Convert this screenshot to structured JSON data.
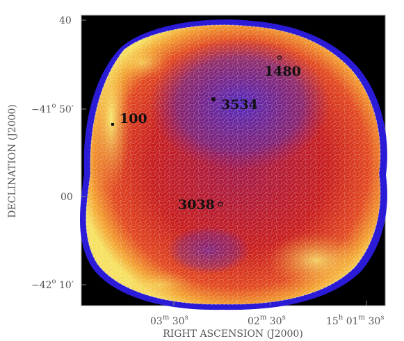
{
  "figure": {
    "y_axis_label": "DECLINATION (J2000)",
    "x_axis_label": "RIGHT ASCENSION (J2000)",
    "y_ticks": [
      {
        "deg": "",
        "min": "40",
        "prefix": ""
      },
      {
        "deg": "o",
        "min": " 50′",
        "prefix": "−41"
      },
      {
        "deg": "",
        "min": "00",
        "prefix": ""
      },
      {
        "deg": "o",
        "min": " 10′",
        "prefix": "−42"
      }
    ],
    "x_ticks": [
      {
        "h": "03",
        "hsup": "m",
        "m": " 30",
        "msup": "s"
      },
      {
        "h": "02",
        "hsup": "m",
        "m": " 30",
        "msup": "s"
      },
      {
        "h": "15",
        "hsup": "h",
        "m": " 01",
        "msup": "m",
        "s": " 30",
        "ssup": "s"
      }
    ],
    "region_labels": [
      "1480",
      "3534",
      "100",
      "3038"
    ],
    "colormap": [
      "#000000",
      "#2b1bd6",
      "#7a2fb0",
      "#c81e1e",
      "#f05020",
      "#f5c040",
      "#f0f070"
    ]
  }
}
